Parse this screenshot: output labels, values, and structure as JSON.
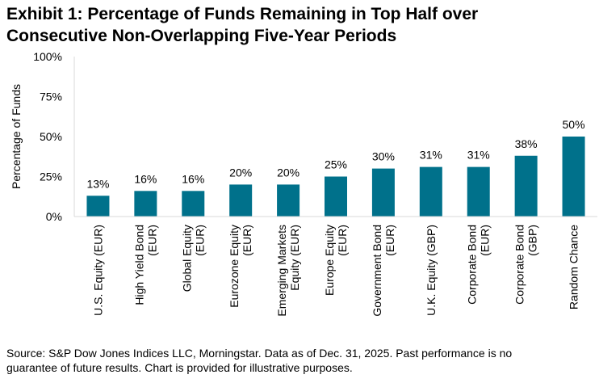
{
  "title_lines": [
    "Exhibit 1: Percentage of Funds Remaining in Top Half over",
    "Consecutive Non-Overlapping Five-Year Periods"
  ],
  "footer_lines": [
    "Source: S&P Dow Jones Indices LLC, Morningstar. Data as of Dec. 31, 2025.  Past performance is no",
    "guarantee of future results.  Chart is provided for illustrative purposes."
  ],
  "colors": {
    "bar": "#00718b",
    "axis": "#d9d9d9"
  },
  "chart_data": {
    "type": "bar",
    "title": "",
    "xlabel": "",
    "ylabel": "Percentage of Funds",
    "ylim": [
      0,
      100
    ],
    "yticks": [
      "0%",
      "25%",
      "50%",
      "75%",
      "100%"
    ],
    "grid": false,
    "categories": [
      [
        "U.S. Equity (EUR)"
      ],
      [
        "High Yield Bond",
        "(EUR)"
      ],
      [
        "Global Equity",
        "(EUR)"
      ],
      [
        "Eurozone Equity",
        "(EUR)"
      ],
      [
        "Emerging Markets",
        "Equity (EUR)"
      ],
      [
        "Europe Equity",
        "(EUR)"
      ],
      [
        "Government Bond",
        "(EUR)"
      ],
      [
        "U.K. Equity (GBP)"
      ],
      [
        "Corporate Bond",
        "(EUR)"
      ],
      [
        "Corporate Bond",
        "(GBP)"
      ],
      [
        "Random Chance"
      ]
    ],
    "values": [
      13,
      16,
      16,
      20,
      20,
      25,
      30,
      31,
      31,
      38,
      50
    ],
    "value_labels": [
      "13%",
      "16%",
      "16%",
      "20%",
      "20%",
      "25%",
      "30%",
      "31%",
      "31%",
      "38%",
      "50%"
    ]
  }
}
